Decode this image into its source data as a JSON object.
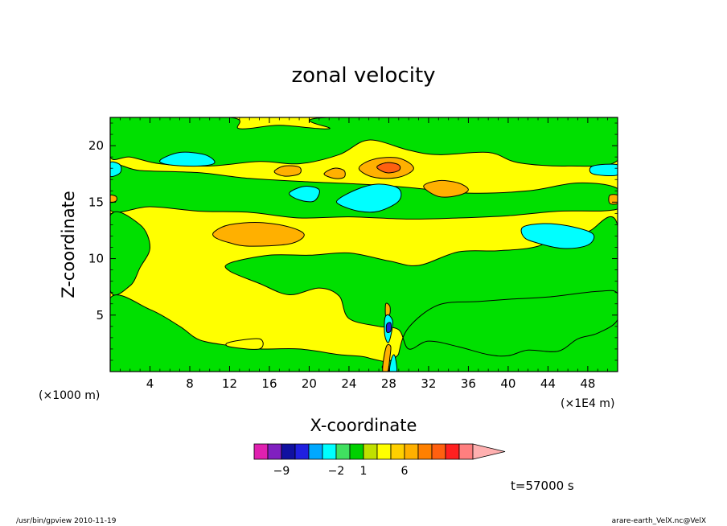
{
  "chart_data": {
    "type": "heatmap",
    "title": "zonal velocity",
    "xlabel": "X-coordinate",
    "ylabel": "Z-coordinate",
    "x_unit": "(×1E4 m)",
    "y_unit": "(×1000 m)",
    "xlim": [
      0,
      51
    ],
    "ylim": [
      0,
      22.5
    ],
    "x_ticks": [
      4,
      8,
      12,
      16,
      20,
      24,
      28,
      32,
      36,
      40,
      44,
      48
    ],
    "y_ticks": [
      5,
      10,
      15,
      20
    ],
    "colorbar": {
      "colors": [
        "#e020b0",
        "#8020c0",
        "#1010a0",
        "#2020e0",
        "#00a8ff",
        "#00ffff",
        "#40e060",
        "#00d000",
        "#c0e000",
        "#ffff00",
        "#ffd000",
        "#ffb000",
        "#ff8000",
        "#ff6010",
        "#ff2020",
        "#ff7f7f",
        "#ffb0b0"
      ],
      "labels": [
        {
          "value": -9,
          "text": "−9"
        },
        {
          "value": -2,
          "text": "−2"
        },
        {
          "value": 1,
          "text": "1"
        },
        {
          "value": 6,
          "text": "6"
        }
      ]
    },
    "regions": [
      {
        "level": "green",
        "polygon": [
          [
            0,
            22.5
          ],
          [
            12,
            22.5
          ],
          [
            13,
            21.5
          ],
          [
            17,
            21.8
          ],
          [
            22,
            21.5
          ],
          [
            22,
            22.5
          ],
          [
            51,
            22.5
          ],
          [
            51,
            18.7
          ],
          [
            46,
            18.2
          ],
          [
            41,
            18.5
          ],
          [
            38,
            19.4
          ],
          [
            33,
            19.2
          ],
          [
            30,
            19.6
          ],
          [
            26,
            20.5
          ],
          [
            23,
            19.2
          ],
          [
            19,
            18.4
          ],
          [
            15,
            18.6
          ],
          [
            10,
            18.2
          ],
          [
            5,
            18.4
          ],
          [
            2,
            19
          ],
          [
            0,
            19
          ]
        ]
      },
      {
        "level": "green",
        "polygon": [
          [
            0,
            18.2
          ],
          [
            3,
            17.8
          ],
          [
            9,
            17.6
          ],
          [
            14,
            17.1
          ],
          [
            20,
            16.8
          ],
          [
            25,
            16.6
          ],
          [
            30,
            16.3
          ],
          [
            36,
            15.8
          ],
          [
            42,
            16
          ],
          [
            47,
            16.7
          ],
          [
            51,
            16.2
          ],
          [
            51,
            14.4
          ],
          [
            45,
            14.2
          ],
          [
            40,
            13.8
          ],
          [
            35,
            13.6
          ],
          [
            30,
            13.5
          ],
          [
            24,
            13.7
          ],
          [
            19,
            13.6
          ],
          [
            14,
            14.1
          ],
          [
            9,
            14.2
          ],
          [
            4,
            14.6
          ],
          [
            0,
            14.3
          ]
        ]
      },
      {
        "level": "green",
        "polygon": [
          [
            0,
            13.8
          ],
          [
            3,
            13
          ],
          [
            4,
            11
          ],
          [
            3,
            9.2
          ],
          [
            2,
            7.6
          ],
          [
            0,
            7.2
          ]
        ]
      },
      {
        "level": "green",
        "polygon": [
          [
            0,
            6.5
          ],
          [
            4,
            5.5
          ],
          [
            7,
            4
          ],
          [
            9,
            2.8
          ],
          [
            12,
            2.3
          ],
          [
            15,
            2
          ],
          [
            19,
            2
          ],
          [
            23,
            1.5
          ],
          [
            26,
            1.2
          ],
          [
            28,
            0
          ],
          [
            0,
            0
          ]
        ]
      },
      {
        "level": "green",
        "polygon": [
          [
            12,
            9.6
          ],
          [
            16,
            10.3
          ],
          [
            20,
            10.3
          ],
          [
            24,
            10.5
          ],
          [
            28,
            9.8
          ],
          [
            31,
            9.4
          ],
          [
            35,
            10.6
          ],
          [
            39,
            10.7
          ],
          [
            43,
            11.1
          ],
          [
            46,
            12.5
          ],
          [
            48,
            12.4
          ],
          [
            51,
            12.9
          ],
          [
            51,
            0
          ],
          [
            29,
            0
          ],
          [
            29,
            1.6
          ],
          [
            30,
            3.9
          ],
          [
            33,
            5.9
          ],
          [
            37,
            6.2
          ],
          [
            40,
            6.4
          ],
          [
            44,
            6.6
          ],
          [
            49,
            7.1
          ],
          [
            51,
            6.9
          ],
          [
            51,
            4.6
          ],
          [
            49,
            3.4
          ],
          [
            47,
            2.9
          ],
          [
            45,
            1.8
          ],
          [
            42,
            1.9
          ],
          [
            40,
            1.4
          ],
          [
            38,
            1.5
          ],
          [
            35,
            2.2
          ],
          [
            32,
            2.7
          ],
          [
            30,
            2
          ],
          [
            29,
            3.7
          ],
          [
            27,
            4
          ],
          [
            24,
            4.7
          ],
          [
            23,
            6.7
          ],
          [
            21,
            7.4
          ],
          [
            18,
            6.8
          ],
          [
            15,
            7.8
          ],
          [
            12,
            8.9
          ]
        ]
      },
      {
        "level": "yellow",
        "polygon": [
          [
            12,
            2.2
          ],
          [
            15,
            2
          ],
          [
            15,
            2.9
          ],
          [
            12,
            2.6
          ]
        ]
      },
      {
        "level": "orange",
        "polygon": [
          [
            10.5,
            12.4
          ],
          [
            12,
            13
          ],
          [
            15,
            13.2
          ],
          [
            18,
            12.8
          ],
          [
            19.5,
            12.1
          ],
          [
            18,
            11.3
          ],
          [
            14,
            11.1
          ],
          [
            12,
            11.4
          ],
          [
            10.5,
            11.9
          ]
        ]
      },
      {
        "level": "orange",
        "polygon": [
          [
            25,
            18
          ],
          [
            26.5,
            18.8
          ],
          [
            29,
            18.9
          ],
          [
            30.5,
            18
          ],
          [
            29,
            17.2
          ],
          [
            26.5,
            17.2
          ]
        ]
      },
      {
        "level": "red",
        "polygon": [
          [
            26.8,
            18.1
          ],
          [
            27.8,
            18.5
          ],
          [
            29,
            18.3
          ],
          [
            29,
            17.8
          ],
          [
            27.8,
            17.6
          ]
        ]
      },
      {
        "level": "orange",
        "polygon": [
          [
            31.5,
            16.4
          ],
          [
            33,
            16.9
          ],
          [
            35,
            16.7
          ],
          [
            36,
            16.1
          ],
          [
            35,
            15.6
          ],
          [
            33,
            15.5
          ]
        ]
      },
      {
        "level": "orange",
        "polygon": [
          [
            16.5,
            17.7
          ],
          [
            17.5,
            18.2
          ],
          [
            19,
            18.1
          ],
          [
            19,
            17.5
          ],
          [
            17.5,
            17.3
          ]
        ]
      },
      {
        "level": "orange",
        "polygon": [
          [
            21.5,
            17.5
          ],
          [
            22.5,
            18
          ],
          [
            23.5,
            17.8
          ],
          [
            23.5,
            17.2
          ],
          [
            22.5,
            17.1
          ]
        ]
      },
      {
        "level": "cyan",
        "polygon": [
          [
            5,
            18.7
          ],
          [
            7,
            19.4
          ],
          [
            9.5,
            19.2
          ],
          [
            10.5,
            18.5
          ],
          [
            9,
            18.2
          ],
          [
            6,
            18.3
          ]
        ]
      },
      {
        "level": "cyan",
        "polygon": [
          [
            23,
            15.3
          ],
          [
            25,
            16.2
          ],
          [
            27,
            16.6
          ],
          [
            29,
            16.2
          ],
          [
            29,
            15.1
          ],
          [
            27,
            14.2
          ],
          [
            25,
            14.2
          ],
          [
            23,
            14.8
          ]
        ]
      },
      {
        "level": "cyan",
        "polygon": [
          [
            18,
            15.8
          ],
          [
            19.5,
            16.4
          ],
          [
            21,
            16.1
          ],
          [
            20.5,
            15.1
          ],
          [
            19,
            15.2
          ]
        ]
      },
      {
        "level": "cyan",
        "polygon": [
          [
            41.5,
            12.8
          ],
          [
            43.5,
            13.1
          ],
          [
            46,
            12.9
          ],
          [
            48.5,
            12.2
          ],
          [
            48,
            11.2
          ],
          [
            45.5,
            10.9
          ],
          [
            42.5,
            11.5
          ],
          [
            41.5,
            12
          ]
        ]
      },
      {
        "level": "cyan",
        "polygon": [
          [
            0,
            18.5
          ],
          [
            1,
            18.3
          ],
          [
            1,
            17.6
          ],
          [
            0,
            17.3
          ]
        ]
      },
      {
        "level": "cyan",
        "polygon": [
          [
            48.5,
            18.2
          ],
          [
            51,
            18.3
          ],
          [
            51,
            17.4
          ],
          [
            48.5,
            17.5
          ]
        ]
      },
      {
        "level": "orange",
        "polygon": [
          [
            0,
            15.6
          ],
          [
            0.6,
            15.5
          ],
          [
            0.6,
            15.1
          ],
          [
            0,
            15
          ]
        ]
      },
      {
        "level": "orange",
        "polygon": [
          [
            50.2,
            15.6
          ],
          [
            51,
            15.6
          ],
          [
            51,
            14.9
          ],
          [
            50.2,
            14.9
          ]
        ]
      },
      {
        "level": "orange",
        "polygon": [
          [
            27.7,
            6
          ],
          [
            28.1,
            5.8
          ],
          [
            28.1,
            5.1
          ],
          [
            27.7,
            4.9
          ]
        ]
      },
      {
        "level": "orange",
        "polygon": [
          [
            27.4,
            0
          ],
          [
            27.5,
            1.2
          ],
          [
            27.8,
            2.3
          ],
          [
            28.2,
            2.2
          ],
          [
            28.1,
            1.2
          ],
          [
            27.9,
            0
          ]
        ]
      },
      {
        "level": "cyan",
        "polygon": [
          [
            27.6,
            4.7
          ],
          [
            28,
            5
          ],
          [
            28.4,
            4.3
          ],
          [
            28,
            2.6
          ],
          [
            27.6,
            3.2
          ]
        ]
      },
      {
        "level": "cyan",
        "polygon": [
          [
            28.1,
            0
          ],
          [
            28.3,
            1.2
          ],
          [
            28.6,
            1.4
          ],
          [
            28.8,
            0
          ]
        ]
      },
      {
        "level": "blue",
        "polygon": [
          [
            27.8,
            4.2
          ],
          [
            28.2,
            4.3
          ],
          [
            28.2,
            3.6
          ],
          [
            27.8,
            3.5
          ]
        ]
      }
    ]
  },
  "time_label": "t=57000 s",
  "footer": {
    "left": "/usr/bin/gpview  2010-11-19",
    "right": "arare-earth_VelX.nc@VelX"
  }
}
